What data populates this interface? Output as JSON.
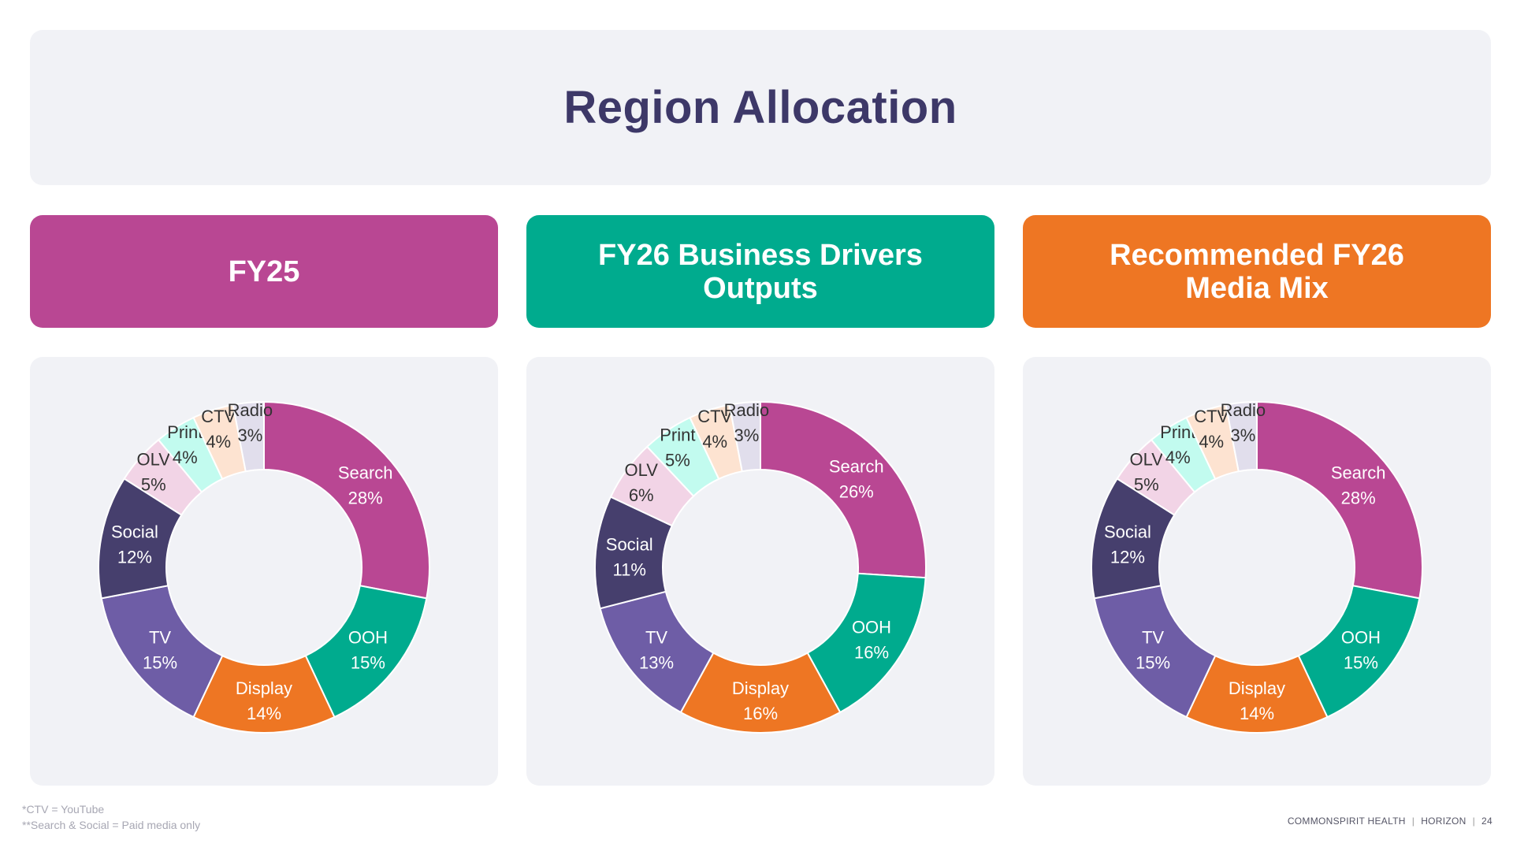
{
  "title": "Region Allocation",
  "headers": [
    {
      "label": "FY25",
      "color": "#b94793"
    },
    {
      "label": "FY26 Business Drivers Outputs",
      "color": "#00ab8e"
    },
    {
      "label": "Recommended FY26 Media Mix",
      "color": "#ee7623"
    }
  ],
  "chart_data": [
    {
      "type": "pie",
      "donut": true,
      "categories": [
        "Search",
        "OOH",
        "Display",
        "TV",
        "Social",
        "OLV",
        "Print",
        "CTV",
        "Radio"
      ],
      "values": [
        28,
        15,
        14,
        15,
        12,
        5,
        4,
        4,
        3
      ],
      "labels": [
        "28%",
        "15%",
        "14%",
        "15%",
        "12%",
        "5%",
        "4%",
        "4%",
        "3%"
      ]
    },
    {
      "type": "pie",
      "donut": true,
      "categories": [
        "Search",
        "OOH",
        "Display",
        "TV",
        "Social",
        "OLV",
        "Print",
        "CTV",
        "Radio"
      ],
      "values": [
        26,
        16,
        16,
        13,
        11,
        6,
        5,
        4,
        3
      ],
      "labels": [
        "26%",
        "16%",
        "16%",
        "13%",
        "11%",
        "6%",
        "5%",
        "4%",
        "3%"
      ]
    },
    {
      "type": "pie",
      "donut": true,
      "categories": [
        "Search",
        "OOH",
        "Display",
        "TV",
        "Social",
        "OLV",
        "Print",
        "CTV",
        "Radio"
      ],
      "values": [
        28,
        15,
        14,
        15,
        12,
        5,
        4,
        4,
        3
      ],
      "labels": [
        "28%",
        "15%",
        "14%",
        "15%",
        "12%",
        "5%",
        "4%",
        "4%",
        "3%"
      ]
    }
  ],
  "colors": {
    "Search": "#b94793",
    "OOH": "#00ab8e",
    "Display": "#ee7623",
    "TV": "#6e5da6",
    "Social": "#463f6d",
    "OLV": "#f2d4e6",
    "Print": "#c2fbef",
    "CTV": "#fde3d1",
    "Radio": "#e1deec"
  },
  "label_colors": {
    "Search": "#ffffff",
    "OOH": "#ffffff",
    "Display": "#ffffff",
    "TV": "#ffffff",
    "Social": "#ffffff",
    "OLV": "#333333",
    "Print": "#333333",
    "CTV": "#333333",
    "Radio": "#333333"
  },
  "footnotes": [
    "*CTV = YouTube",
    "**Search & Social = Paid media only"
  ],
  "footer": {
    "company": "COMMONSPIRIT HEALTH",
    "project": "HORIZON",
    "page": "24"
  }
}
